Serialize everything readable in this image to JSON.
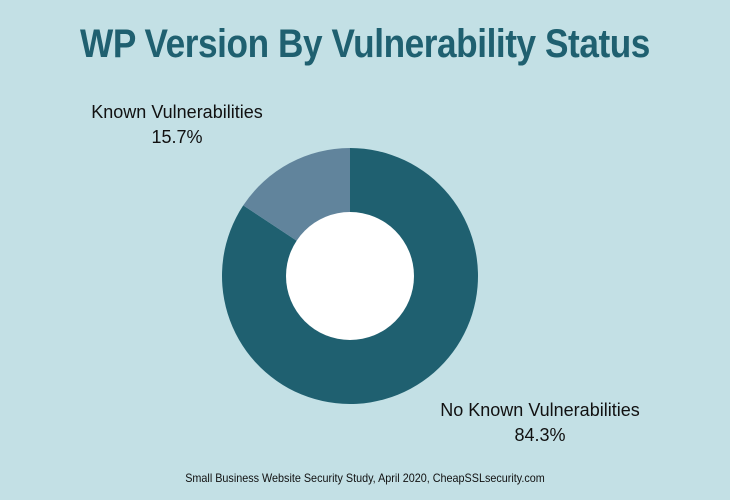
{
  "chart_data": {
    "type": "donut",
    "title": "WP Version By Vulnerability Status",
    "slices": [
      {
        "label": "No Known Vulnerabilities",
        "value": 84.3,
        "display": "84.3%",
        "color": "#1f6070"
      },
      {
        "label": "Known Vulnerabilities",
        "value": 15.7,
        "display": "15.7%",
        "color": "#61849c"
      }
    ],
    "center_color": "#ffffff"
  },
  "footer": "Small Business Website Security Study, April 2020, CheapSSLsecurity.com"
}
